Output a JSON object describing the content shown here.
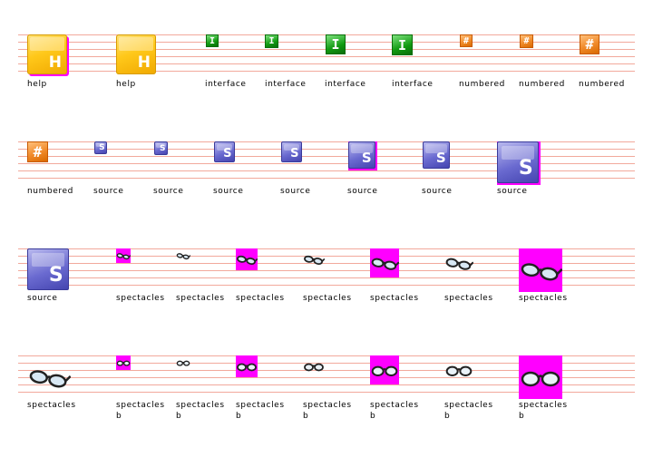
{
  "labels": {
    "help": "help",
    "interface": "interface",
    "numbered": "numbered",
    "source": "source",
    "spectacles": "spectacles",
    "spectacles_b": "spectacles\nb"
  },
  "glyphs": {
    "help": "H",
    "interface": "I",
    "numbered": "#",
    "source": "S"
  },
  "colors": {
    "guide_lines": "#f2a99c",
    "selection": "#ff00ff"
  }
}
